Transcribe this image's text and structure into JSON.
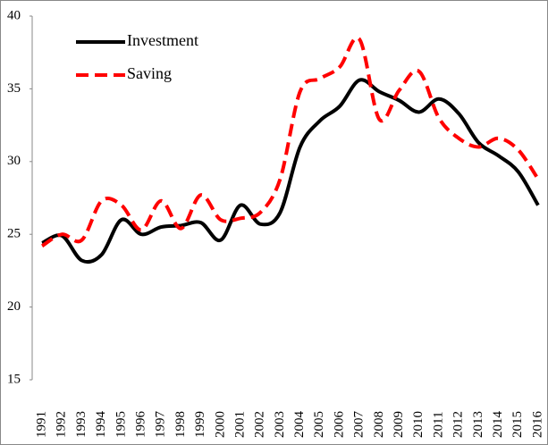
{
  "chart_data": {
    "type": "line",
    "categories": [
      "1991",
      "1992",
      "1993",
      "1994",
      "1995",
      "1996",
      "1997",
      "1998",
      "1999",
      "2000",
      "2001",
      "2002",
      "2003",
      "2004",
      "2005",
      "2006",
      "2007",
      "2008",
      "2009",
      "2010",
      "2011",
      "2012",
      "2013",
      "2014",
      "2015",
      "2016"
    ],
    "series": [
      {
        "name": "Investment",
        "color": "#000000",
        "dash": false,
        "values": [
          24.4,
          24.9,
          23.2,
          23.6,
          26.0,
          25.0,
          25.5,
          25.6,
          25.8,
          24.6,
          27.0,
          25.7,
          26.5,
          31.0,
          32.8,
          33.8,
          35.6,
          34.8,
          34.2,
          33.4,
          34.3,
          33.3,
          31.3,
          30.4,
          29.3,
          27.0
        ]
      },
      {
        "name": "Saving",
        "color": "#ff0000",
        "dash": true,
        "values": [
          24.2,
          25.0,
          24.6,
          27.3,
          27.0,
          25.3,
          27.3,
          25.4,
          27.7,
          26.0,
          26.1,
          26.5,
          28.8,
          34.8,
          35.7,
          36.5,
          38.4,
          32.9,
          34.9,
          36.2,
          33.0,
          31.6,
          31.0,
          31.6,
          30.8,
          28.8
        ]
      }
    ],
    "ylim": [
      15,
      40
    ],
    "yticks": [
      15,
      20,
      25,
      30,
      35,
      40
    ],
    "grid": false
  }
}
